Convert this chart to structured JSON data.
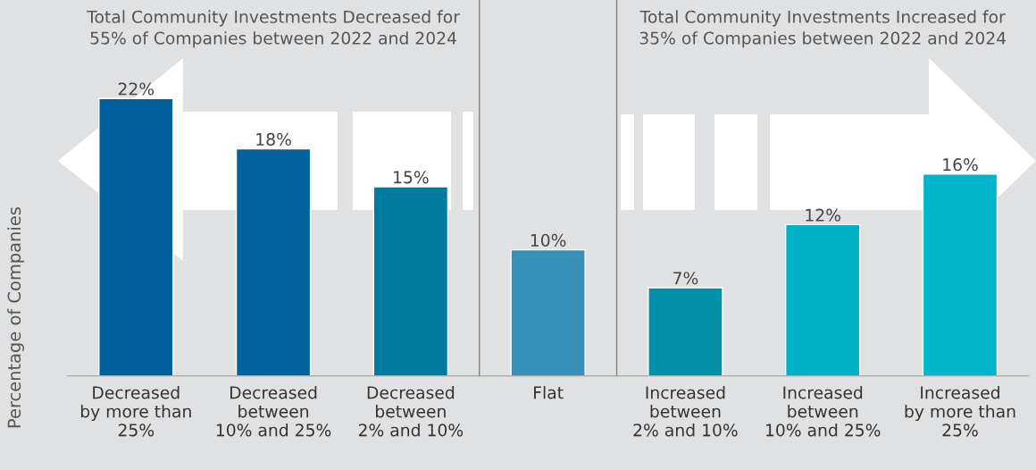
{
  "chart_data": {
    "type": "bar",
    "categories": [
      "Decreased\nby more than\n25%",
      "Decreased\nbetween\n10% and 25%",
      "Decreased\nbetween\n2% and 10%",
      "Flat",
      "Increased\nbetween\n2% and 10%",
      "Increased\nbetween\n10% and 25%",
      "Increased\nby more than\n25%"
    ],
    "values": [
      22,
      18,
      15,
      10,
      7,
      12,
      16
    ],
    "value_labels": [
      "22%",
      "18%",
      "15%",
      "10%",
      "7%",
      "12%",
      "16%"
    ],
    "colors": [
      "#00609c",
      "#00639e",
      "#007a9e",
      "#3791b8",
      "#0090a8",
      "#00b2c8",
      "#00b5cc"
    ],
    "ylabel": "Percentage of Companies",
    "annotations": [
      "Total Community Investments Decreased for\n55% of Companies between 2022 and 2024",
      "Total Community Investments Increased for\n35% of Companies between 2022 and 2024"
    ],
    "grid": false,
    "legend": false
  }
}
